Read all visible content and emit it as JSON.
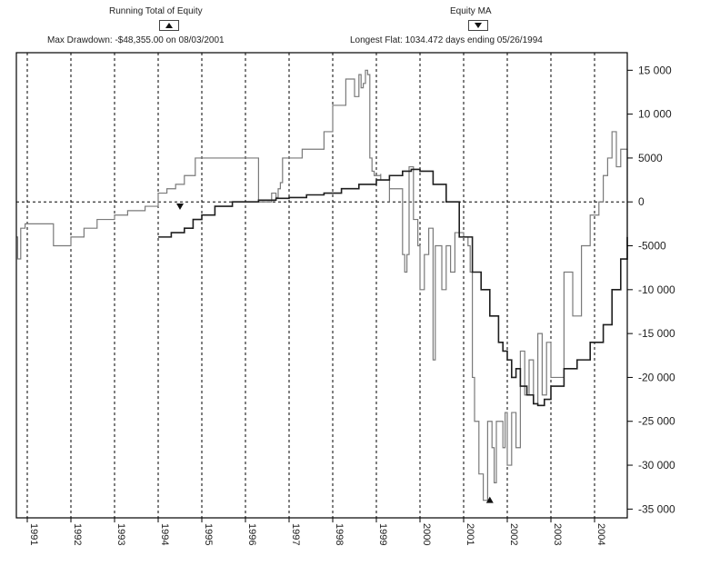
{
  "header": {
    "left_title": "Running Total of Equity",
    "left_subtitle": "Max Drawdown: -$48,355.00 on 08/03/2001",
    "right_title": "Equity MA",
    "right_subtitle": "Longest Flat: 1034.472 days ending 05/26/1994"
  },
  "colors": {
    "equity_line": "#7a7a7a",
    "ma_line": "#1e1e1e",
    "grid": "#000000",
    "frame": "#000000"
  },
  "chart_data": {
    "type": "line",
    "title": "",
    "xlabel": "",
    "ylabel": "",
    "xlim": [
      1990.75,
      2004.75
    ],
    "ylim": [
      -36000,
      17000
    ],
    "grid": true,
    "zero_line": true,
    "y_ticks": [
      15000,
      10000,
      5000,
      0,
      -5000,
      -10000,
      -15000,
      -20000,
      -25000,
      -30000,
      -35000
    ],
    "y_tick_labels": [
      "15 000",
      "10 000",
      "5000",
      "0",
      "-5000",
      "-10 000",
      "-15 000",
      "-20 000",
      "-25 000",
      "-30 000",
      "-35 000"
    ],
    "x_ticks": [
      1991,
      1992,
      1993,
      1994,
      1995,
      1996,
      1997,
      1998,
      1999,
      2000,
      2001,
      2002,
      2003,
      2004
    ],
    "x_tick_labels": [
      "1991",
      "1992",
      "1993",
      "1994",
      "1995",
      "1996",
      "1997",
      "1998",
      "1999",
      "2000",
      "2001",
      "2002",
      "2003",
      "2004"
    ],
    "series": [
      {
        "name": "Running Total of Equity",
        "x": [
          1990.75,
          1990.78,
          1990.85,
          1990.95,
          1991.6,
          1991.6,
          1991.7,
          1992.0,
          1992.3,
          1992.6,
          1993.0,
          1993.3,
          1993.7,
          1994.0,
          1994.2,
          1994.4,
          1994.6,
          1994.85,
          1995.3,
          1996.3,
          1996.3,
          1996.6,
          1996.6,
          1996.7,
          1996.75,
          1996.8,
          1996.8,
          1996.85,
          1997.3,
          1997.8,
          1998.0,
          1998.0,
          1998.3,
          1998.3,
          1998.5,
          1998.5,
          1998.6,
          1998.65,
          1998.7,
          1998.75,
          1998.8,
          1998.85,
          1998.9,
          1998.95,
          1999.1,
          1999.1,
          1999.3,
          1999.3,
          1999.6,
          1999.6,
          1999.65,
          1999.7,
          1999.75,
          1999.85,
          1999.95,
          2000.0,
          2000.1,
          2000.2,
          2000.3,
          2000.35,
          2000.5,
          2000.6,
          2000.7,
          2000.8,
          2001.0,
          2001.1,
          2001.15,
          2001.2,
          2001.25,
          2001.35,
          2001.45,
          2001.55,
          2001.65,
          2001.7,
          2001.75,
          2001.9,
          2001.95,
          2002.0,
          2002.1,
          2002.2,
          2002.3,
          2002.4,
          2002.5,
          2002.6,
          2002.7,
          2002.8,
          2002.9,
          2003.0,
          2003.3,
          2003.5,
          2003.7,
          2003.9,
          2004.0,
          2004.1,
          2004.2,
          2004.3,
          2004.4,
          2004.5,
          2004.6,
          2004.75
        ],
        "y": [
          -4000,
          -6500,
          -3000,
          -2500,
          -2500,
          -5000,
          -5000,
          -4000,
          -3000,
          -2000,
          -1500,
          -1000,
          -500,
          1000,
          1500,
          2000,
          3000,
          5000,
          5000,
          5000,
          0,
          0,
          1000,
          500,
          1500,
          2000,
          2200,
          5000,
          6000,
          8000,
          8500,
          11000,
          11000,
          14000,
          14000,
          12000,
          14500,
          13000,
          13500,
          15000,
          14500,
          5000,
          3500,
          3000,
          3200,
          2500,
          0,
          1500,
          -2000,
          -6000,
          -8000,
          -6000,
          4000,
          -2000,
          -5000,
          -10000,
          -6000,
          -3000,
          -18000,
          -5000,
          -10000,
          -5000,
          -8000,
          -3500,
          -4000,
          -5000,
          -8000,
          -20000,
          -25000,
          -31000,
          -34000,
          -25000,
          -28000,
          -32000,
          -25000,
          -28000,
          -24000,
          -30000,
          -24000,
          -28000,
          -17000,
          -22000,
          -18000,
          -23000,
          -15000,
          -22000,
          -16000,
          -20000,
          -8000,
          -13000,
          -5000,
          -1500,
          -1500,
          0,
          3000,
          5000,
          8000,
          4000,
          6000,
          -5000
        ]
      },
      {
        "name": "Equity MA",
        "x": [
          1994.0,
          1994.3,
          1994.6,
          1994.8,
          1995.0,
          1995.3,
          1995.7,
          1996.0,
          1996.3,
          1996.7,
          1997.0,
          1997.4,
          1997.8,
          1998.2,
          1998.6,
          1999.0,
          1999.3,
          1999.6,
          1999.8,
          2000.0,
          2000.3,
          2000.6,
          2000.9,
          2001.2,
          2001.4,
          2001.6,
          2001.8,
          2001.9,
          2002.0,
          2002.1,
          2002.2,
          2002.3,
          2002.45,
          2002.6,
          2002.7,
          2002.85,
          2003.0,
          2003.3,
          2003.6,
          2003.9,
          2004.2,
          2004.4,
          2004.6,
          2004.75
        ],
        "y": [
          -4000,
          -3500,
          -3000,
          -2000,
          -1500,
          -500,
          0,
          0,
          200,
          400,
          500,
          800,
          1000,
          1500,
          2000,
          2500,
          3000,
          3500,
          3700,
          3500,
          2000,
          0,
          -4000,
          -8000,
          -10000,
          -13000,
          -16000,
          -17000,
          -18000,
          -20000,
          -19000,
          -21000,
          -22000,
          -23000,
          -23200,
          -22500,
          -21000,
          -19000,
          -18000,
          -16000,
          -14000,
          -10000,
          -6500,
          -4000
        ]
      }
    ],
    "annotations": [
      {
        "series": "Running Total of Equity",
        "x": 2001.6,
        "y": -34000,
        "marker": "triangle-up"
      },
      {
        "series": "Equity MA",
        "x": 1994.5,
        "y": -500,
        "marker": "triangle-down"
      }
    ]
  }
}
